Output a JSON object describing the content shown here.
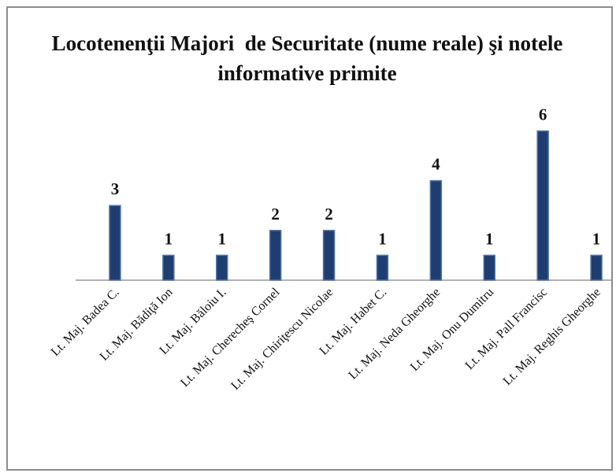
{
  "chart_data": {
    "type": "bar",
    "title": "Locotenenţii Majori  de Securitate (nume reale) şi notele informative primite",
    "categories": [
      "Lt. Maj. Badea C.",
      "Lt. Maj. Bădiţă Ion",
      "Lt. Maj. Băloiu I.",
      "Lt. Maj. Cherecheş Cornel",
      "Lt. Maj. Chiriţescu Nicolae",
      "Lt. Maj. Habet C.",
      "Lt. Maj. Neda Gheorghe",
      "Lt. Maj. Onu Dumitru",
      "Lt. Maj. Pall Francisc",
      "Lt. Maj. Reghis Gheorghe"
    ],
    "values": [
      3,
      1,
      1,
      2,
      2,
      1,
      4,
      1,
      6,
      1
    ],
    "color": "#1f3d6e"
  }
}
